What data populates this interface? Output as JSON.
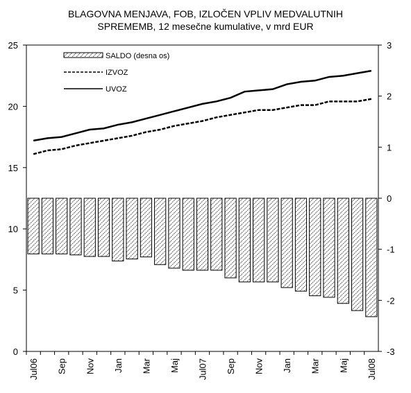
{
  "chart_data": {
    "type": "bar-line",
    "title": [
      "BLAGOVNA MENJAVA, FOB, IZLOČEN VPLIV MEDVALUTNIH",
      "SPREMEMB, 12 mesečne kumulative, v mrd EUR"
    ],
    "categories": [
      "Jul06",
      null,
      "Sep",
      null,
      "Nov",
      null,
      "Jan",
      null,
      "Mar",
      null,
      "Maj",
      null,
      "Jul07",
      null,
      "Sep",
      null,
      "Nov",
      null,
      "Jan",
      null,
      "Mar",
      null,
      "Maj",
      null,
      "Jul08"
    ],
    "series": [
      {
        "name": "SALDO (desna os)",
        "type": "bar",
        "axis": "y2",
        "color": "#666666",
        "values": [
          -1.09,
          -1.09,
          -1.09,
          -1.11,
          -1.14,
          -1.14,
          -1.23,
          -1.19,
          -1.15,
          -1.3,
          -1.37,
          -1.41,
          -1.41,
          -1.41,
          -1.56,
          -1.64,
          -1.64,
          -1.64,
          -1.75,
          -1.82,
          -1.91,
          -1.94,
          -2.06,
          -2.2,
          -2.32
        ]
      },
      {
        "name": "IZVOZ",
        "type": "line",
        "dash": true,
        "color": "#000000",
        "values": [
          16.1,
          16.4,
          16.5,
          16.8,
          17.0,
          17.2,
          17.4,
          17.6,
          17.9,
          18.1,
          18.4,
          18.6,
          18.8,
          19.1,
          19.3,
          19.5,
          19.7,
          19.7,
          19.9,
          20.1,
          20.1,
          20.4,
          20.4,
          20.4,
          20.6
        ]
      },
      {
        "name": "UVOZ",
        "type": "line",
        "dash": false,
        "color": "#000000",
        "values": [
          17.2,
          17.4,
          17.5,
          17.8,
          18.1,
          18.2,
          18.5,
          18.7,
          19.0,
          19.3,
          19.6,
          19.9,
          20.2,
          20.4,
          20.7,
          21.2,
          21.3,
          21.4,
          21.8,
          22.0,
          22.1,
          22.4,
          22.5,
          22.7,
          22.9
        ]
      }
    ],
    "ylim": [
      0,
      25
    ],
    "yticks": [
      0,
      5,
      10,
      15,
      20,
      25
    ],
    "y2lim": [
      -3,
      3
    ],
    "y2ticks": [
      -3,
      -2,
      -1,
      0,
      1,
      2,
      3
    ],
    "legend": "upper left"
  }
}
